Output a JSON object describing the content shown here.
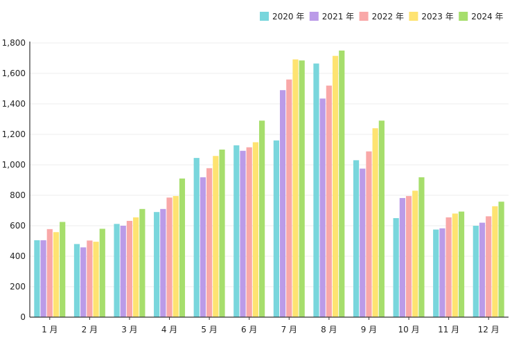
{
  "chart_data": {
    "type": "bar",
    "categories": [
      "1 月",
      "2 月",
      "3 月",
      "4 月",
      "5 月",
      "6 月",
      "7 月",
      "8 月",
      "9 月",
      "10 月",
      "11 月",
      "12 月"
    ],
    "series": [
      {
        "name": "2020 年",
        "color": "#79d6dc",
        "values": [
          505,
          480,
          612,
          690,
          1045,
          1128,
          1160,
          1665,
          1030,
          650,
          575,
          600
        ]
      },
      {
        "name": "2021 年",
        "color": "#bb9be8",
        "values": [
          505,
          458,
          600,
          710,
          918,
          1092,
          1490,
          1435,
          975,
          782,
          583,
          620
        ]
      },
      {
        "name": "2022 年",
        "color": "#f9a8a8",
        "values": [
          578,
          503,
          632,
          785,
          978,
          1115,
          1560,
          1520,
          1088,
          795,
          655,
          662
        ]
      },
      {
        "name": "2023 年",
        "color": "#fee371",
        "values": [
          558,
          495,
          655,
          795,
          1058,
          1148,
          1692,
          1715,
          1240,
          830,
          680,
          728
        ]
      },
      {
        "name": "2024 年",
        "color": "#a6de6c",
        "values": [
          625,
          580,
          710,
          910,
          1100,
          1290,
          1685,
          1750,
          1290,
          918,
          693,
          758
        ]
      }
    ],
    "ylim": [
      0,
      1800
    ],
    "yticks": [
      "0",
      "200",
      "400",
      "600",
      "800",
      "1,000",
      "1,200",
      "1,400",
      "1,600",
      "1,800"
    ],
    "legend_position": "top-right",
    "grid": true,
    "title": "",
    "xlabel": "",
    "ylabel": ""
  }
}
